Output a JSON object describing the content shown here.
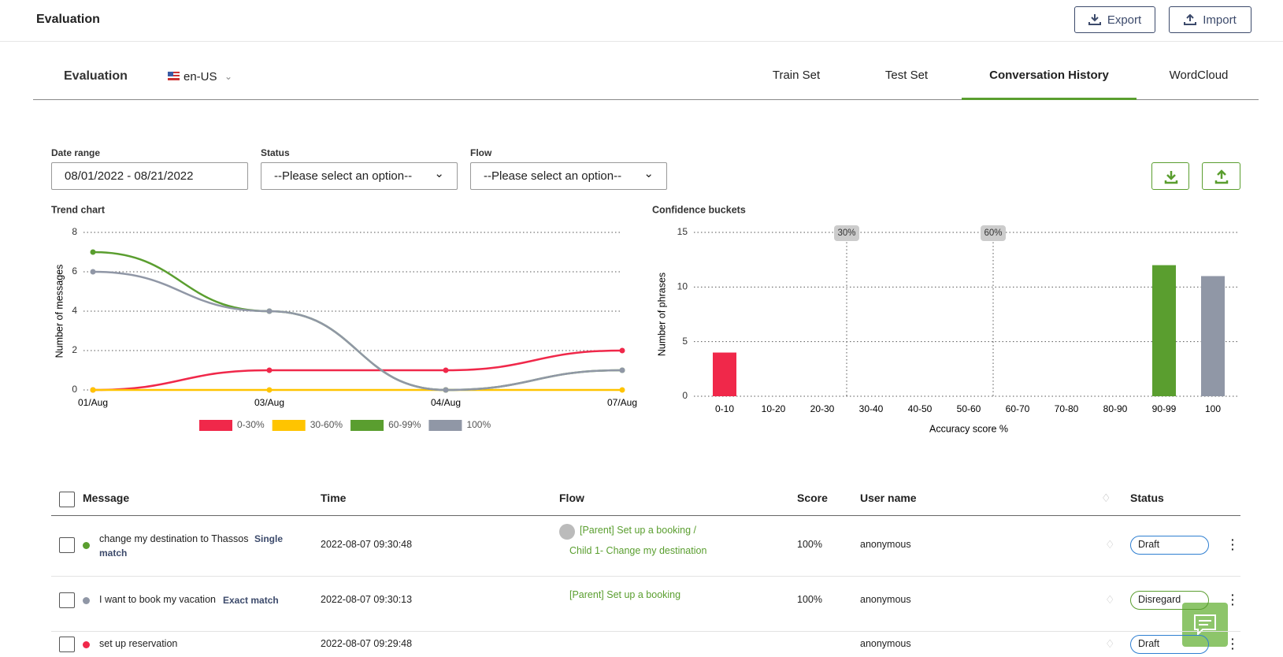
{
  "header": {
    "title": "Evaluation",
    "buttons": [
      "Export",
      "Import"
    ]
  },
  "subheader": {
    "title": "Evaluation",
    "locale": "en-US",
    "tabs": [
      "Train Set",
      "Test Set",
      "Conversation History",
      "WordCloud"
    ],
    "active_tab": 2
  },
  "filters": [
    {
      "label": "Date range",
      "value": "08/01/2022 - 08/21/2022"
    },
    {
      "label": "Status",
      "value": "--Please select an option--"
    },
    {
      "label": "Flow",
      "value": "--Please select an option--"
    }
  ],
  "chart_data": [
    {
      "type": "line",
      "title": "Trend chart",
      "y_label": "Number of messages",
      "categories": [
        "01/Aug",
        "03/Aug",
        "04/Aug",
        "07/Aug"
      ],
      "series": [
        {
          "name": "0-30%",
          "color": "#f0284a",
          "values": [
            0,
            1,
            1,
            2
          ]
        },
        {
          "name": "30-60%",
          "color": "#ffc400",
          "values": [
            0,
            0,
            0,
            0
          ]
        },
        {
          "name": "60-99%",
          "color": "#5a9e2f",
          "values": [
            7,
            4,
            0,
            1
          ]
        },
        {
          "name": "100%",
          "color": "#9097a6",
          "values": [
            6,
            4,
            0,
            1
          ]
        }
      ],
      "ylim": [
        0,
        8
      ],
      "yticks": [
        0,
        2,
        4,
        6,
        8
      ],
      "grid": true,
      "legend": "bottom",
      "smooth": true
    },
    {
      "type": "bar",
      "title": "Confidence buckets",
      "x_label": "Accuracy score %",
      "y_label": "Number of phrases",
      "categories": [
        "0-10",
        "10-20",
        "20-30",
        "30-40",
        "40-50",
        "50-60",
        "60-70",
        "70-80",
        "80-90",
        "90-99",
        "100"
      ],
      "values": [
        4,
        0,
        0,
        0,
        0,
        0,
        0,
        0,
        0,
        12,
        11
      ],
      "colors": [
        "#f0284a",
        "#f0284a",
        "#f0284a",
        "#ffc400",
        "#ffc400",
        "#ffc400",
        "#5a9e2f",
        "#5a9e2f",
        "#5a9e2f",
        "#5a9e2f",
        "#9097a6"
      ],
      "ylim": [
        0,
        15
      ],
      "yticks": [
        0,
        5,
        10,
        15
      ],
      "grid": true,
      "annotations": [
        {
          "value": 30,
          "label": "30%"
        },
        {
          "value": 60,
          "label": "60%"
        }
      ]
    }
  ],
  "table": {
    "columns": [
      "Message",
      "Time",
      "Flow",
      "Score",
      "User name",
      "Status"
    ],
    "rows": [
      {
        "dot_color": "#5a9e2f",
        "message": "change my destination to Thassos",
        "match": "Single match",
        "time": "2022-08-07 09:30:48",
        "flow": [
          "[Parent] Set up a booking /",
          "Child 1- Change my destination"
        ],
        "score": "100%",
        "user": "anonymous",
        "status": "Draft",
        "status_color": "#2f7fd1"
      },
      {
        "dot_color": "#9097a6",
        "message": "I want to book my vacation",
        "match": "Exact match",
        "time": "2022-08-07 09:30:13",
        "flow": [
          "[Parent] Set up a booking"
        ],
        "score": "100%",
        "user": "anonymous",
        "status": "Disregard",
        "status_color": "#5a9e2f"
      },
      {
        "dot_color": "#f0284a",
        "message": "set up reservation",
        "time": "2022-08-07 09:29:48",
        "user": "anonymous",
        "status": "Draft",
        "status_color": "#2f7fd1"
      }
    ]
  }
}
